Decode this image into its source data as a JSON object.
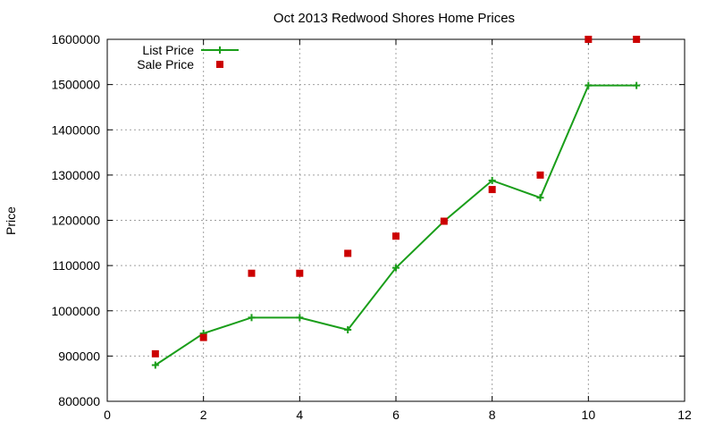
{
  "chart_data": {
    "type": "line",
    "title": "Oct 2013 Redwood Shores Home Prices",
    "xlabel": "",
    "ylabel": "Price",
    "xlim": [
      0,
      12
    ],
    "ylim": [
      800000,
      1600000
    ],
    "xticks": [
      0,
      2,
      4,
      6,
      8,
      10,
      12
    ],
    "yticks": [
      800000,
      900000,
      1000000,
      1100000,
      1200000,
      1300000,
      1400000,
      1500000,
      1600000
    ],
    "grid": true,
    "legend_position": "top-left",
    "series": [
      {
        "name": "List Price",
        "kind": "line-with-plus-markers",
        "color": "#1a9e1a",
        "x": [
          1,
          2,
          3,
          4,
          5,
          6,
          7,
          8,
          9,
          10,
          11
        ],
        "y": [
          880000,
          950000,
          985000,
          985000,
          958000,
          1095000,
          1198000,
          1288000,
          1250000,
          1498000,
          1498000
        ]
      },
      {
        "name": "Sale Price",
        "kind": "square-markers",
        "color": "#cc0000",
        "x": [
          1,
          2,
          3,
          4,
          5,
          6,
          7,
          8,
          9,
          10,
          11
        ],
        "y": [
          905000,
          941000,
          1083000,
          1083000,
          1127000,
          1165000,
          1198000,
          1268000,
          1300000,
          1600000,
          1600000
        ]
      }
    ]
  }
}
